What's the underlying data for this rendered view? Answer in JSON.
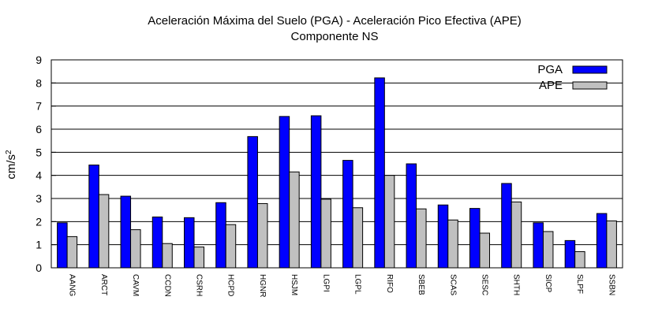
{
  "chart_data": {
    "type": "bar",
    "title": "Aceleración Máxima del Suelo (PGA) -  Aceleración Pico Efectiva (APE)",
    "subtitle": "Componente NS",
    "ylabel": "cm/s",
    "ylabel_superscript": "2",
    "ylim": [
      0,
      9
    ],
    "yticks": [
      "0",
      "1",
      "2",
      "3",
      "4",
      "5",
      "6",
      "7",
      "8",
      "9"
    ],
    "grid": "horizontal",
    "legend_position": "top-right",
    "categories": [
      "AANG",
      "ARCT",
      "CAVM",
      "CCDN",
      "CSRH",
      "HCPD",
      "HGNR",
      "HSJM",
      "LGPI",
      "LGPL",
      "RIFO",
      "SBEB",
      "SCAS",
      "SESC",
      "SHTH",
      "SICP",
      "SLPF",
      "SSBN"
    ],
    "series": [
      {
        "name": "PGA",
        "color": "#0000ff",
        "values": [
          1.95,
          4.45,
          3.1,
          2.2,
          2.17,
          2.82,
          5.68,
          6.55,
          6.58,
          4.65,
          8.22,
          4.5,
          2.72,
          2.57,
          3.65,
          1.95,
          1.18,
          2.35
        ]
      },
      {
        "name": "APE",
        "color": "#c0c0c0",
        "values": [
          1.35,
          3.17,
          1.65,
          1.05,
          0.9,
          1.87,
          2.78,
          4.15,
          2.97,
          2.6,
          4.0,
          2.55,
          2.07,
          1.5,
          2.85,
          1.57,
          0.7,
          2.03
        ]
      }
    ]
  }
}
